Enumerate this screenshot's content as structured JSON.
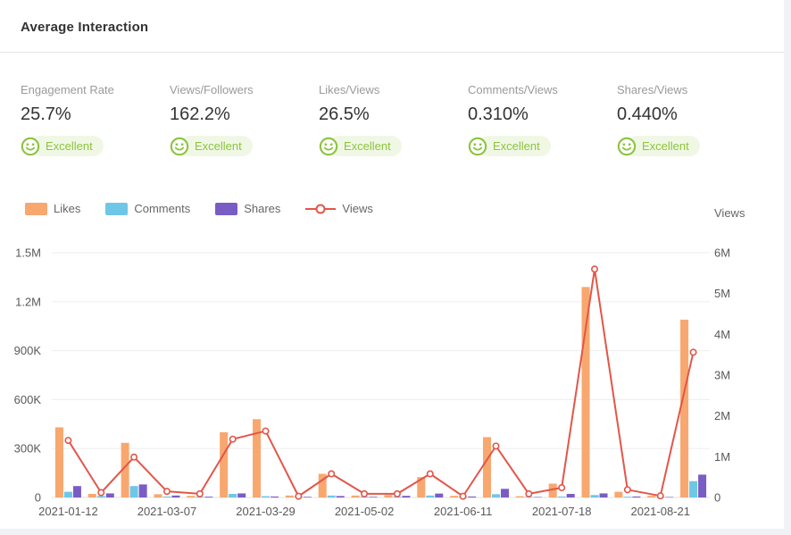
{
  "header": {
    "title": "Average Interaction"
  },
  "metrics": [
    {
      "label": "Engagement Rate",
      "value": "25.7%",
      "badge": "Excellent"
    },
    {
      "label": "Views/Followers",
      "value": "162.2%",
      "badge": "Excellent"
    },
    {
      "label": "Likes/Views",
      "value": "26.5%",
      "badge": "Excellent"
    },
    {
      "label": "Comments/Views",
      "value": "0.310%",
      "badge": "Excellent"
    },
    {
      "label": "Shares/Views",
      "value": "0.440%",
      "badge": "Excellent"
    }
  ],
  "badge_colors": {
    "green": "#8cc43f",
    "pill_bg": "#f0f8e5"
  },
  "legend": [
    {
      "label": "Likes",
      "color": "#f8a76f",
      "type": "bar"
    },
    {
      "label": "Comments",
      "color": "#6ec7e6",
      "type": "bar"
    },
    {
      "label": "Shares",
      "color": "#7a5cc5",
      "type": "bar"
    },
    {
      "label": "Views",
      "color": "#e25649",
      "type": "line"
    }
  ],
  "chart_data": {
    "type": "bar",
    "subtype": "grouped-bars-with-line-dual-axis",
    "categories": [
      "2021-01-12",
      "",
      "",
      "2021-03-07",
      "",
      "",
      "2021-03-29",
      "",
      "",
      "2021-05-02",
      "",
      "",
      "2021-06-11",
      "",
      "",
      "2021-07-18",
      "",
      "",
      "2021-08-21",
      ""
    ],
    "series": [
      {
        "name": "Likes",
        "axis": "left",
        "type": "bar",
        "values": [
          430000,
          22000,
          335000,
          20000,
          10000,
          400000,
          480000,
          12000,
          145000,
          12000,
          15000,
          125000,
          10000,
          370000,
          8000,
          85000,
          1290000,
          35000,
          10000,
          1090000
        ]
      },
      {
        "name": "Comments",
        "axis": "left",
        "type": "bar",
        "values": [
          35000,
          9000,
          70000,
          6000,
          5000,
          22000,
          8000,
          5000,
          12000,
          6000,
          6000,
          12000,
          6000,
          20000,
          4000,
          6000,
          15000,
          5000,
          4000,
          100000
        ]
      },
      {
        "name": "Shares",
        "axis": "left",
        "type": "bar",
        "values": [
          70000,
          25000,
          80000,
          12000,
          5000,
          25000,
          6000,
          4000,
          9000,
          4000,
          10000,
          24000,
          6000,
          53000,
          3000,
          22000,
          25000,
          6000,
          3000,
          140000
        ]
      },
      {
        "name": "Views",
        "axis": "right",
        "type": "line",
        "values": [
          1400000,
          120000,
          990000,
          150000,
          90000,
          1430000,
          1630000,
          30000,
          580000,
          90000,
          90000,
          580000,
          30000,
          1260000,
          90000,
          240000,
          5600000,
          190000,
          40000,
          3560000
        ]
      }
    ],
    "y_left": {
      "min": 0,
      "max": 1500000,
      "tick_labels": [
        "1.5M",
        "1.2M",
        "900K",
        "600K",
        "300K",
        "0"
      ]
    },
    "y_right": {
      "min": 0,
      "max": 6000000,
      "title": "Views",
      "tick_labels": [
        "6M",
        "5M",
        "4M",
        "3M",
        "2M",
        "1M",
        "0"
      ]
    },
    "grid": true,
    "legend_position": "top-left"
  }
}
